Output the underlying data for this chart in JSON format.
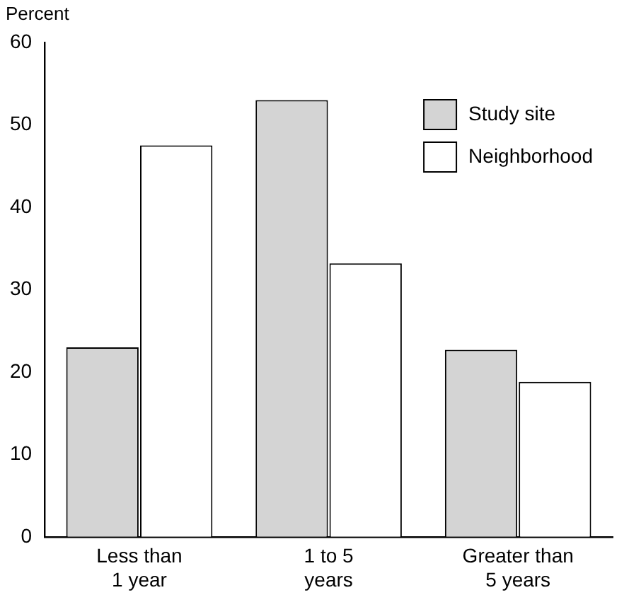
{
  "chart_data": {
    "type": "bar",
    "ylabel": "Percent",
    "categories": [
      "Less than\n1 year",
      "1 to 5\nyears",
      "Greater than\n5 years"
    ],
    "series": [
      {
        "name": "Study site",
        "color": "#d4d4d4",
        "values": [
          23,
          53,
          22.7
        ]
      },
      {
        "name": "Neighborhood",
        "color": "#ffffff",
        "values": [
          47.5,
          33.2,
          18.8
        ]
      }
    ],
    "ylim": [
      0,
      60
    ],
    "yticks": [
      0,
      10,
      20,
      30,
      40,
      50,
      60
    ],
    "grid": false,
    "legend": "top right"
  }
}
